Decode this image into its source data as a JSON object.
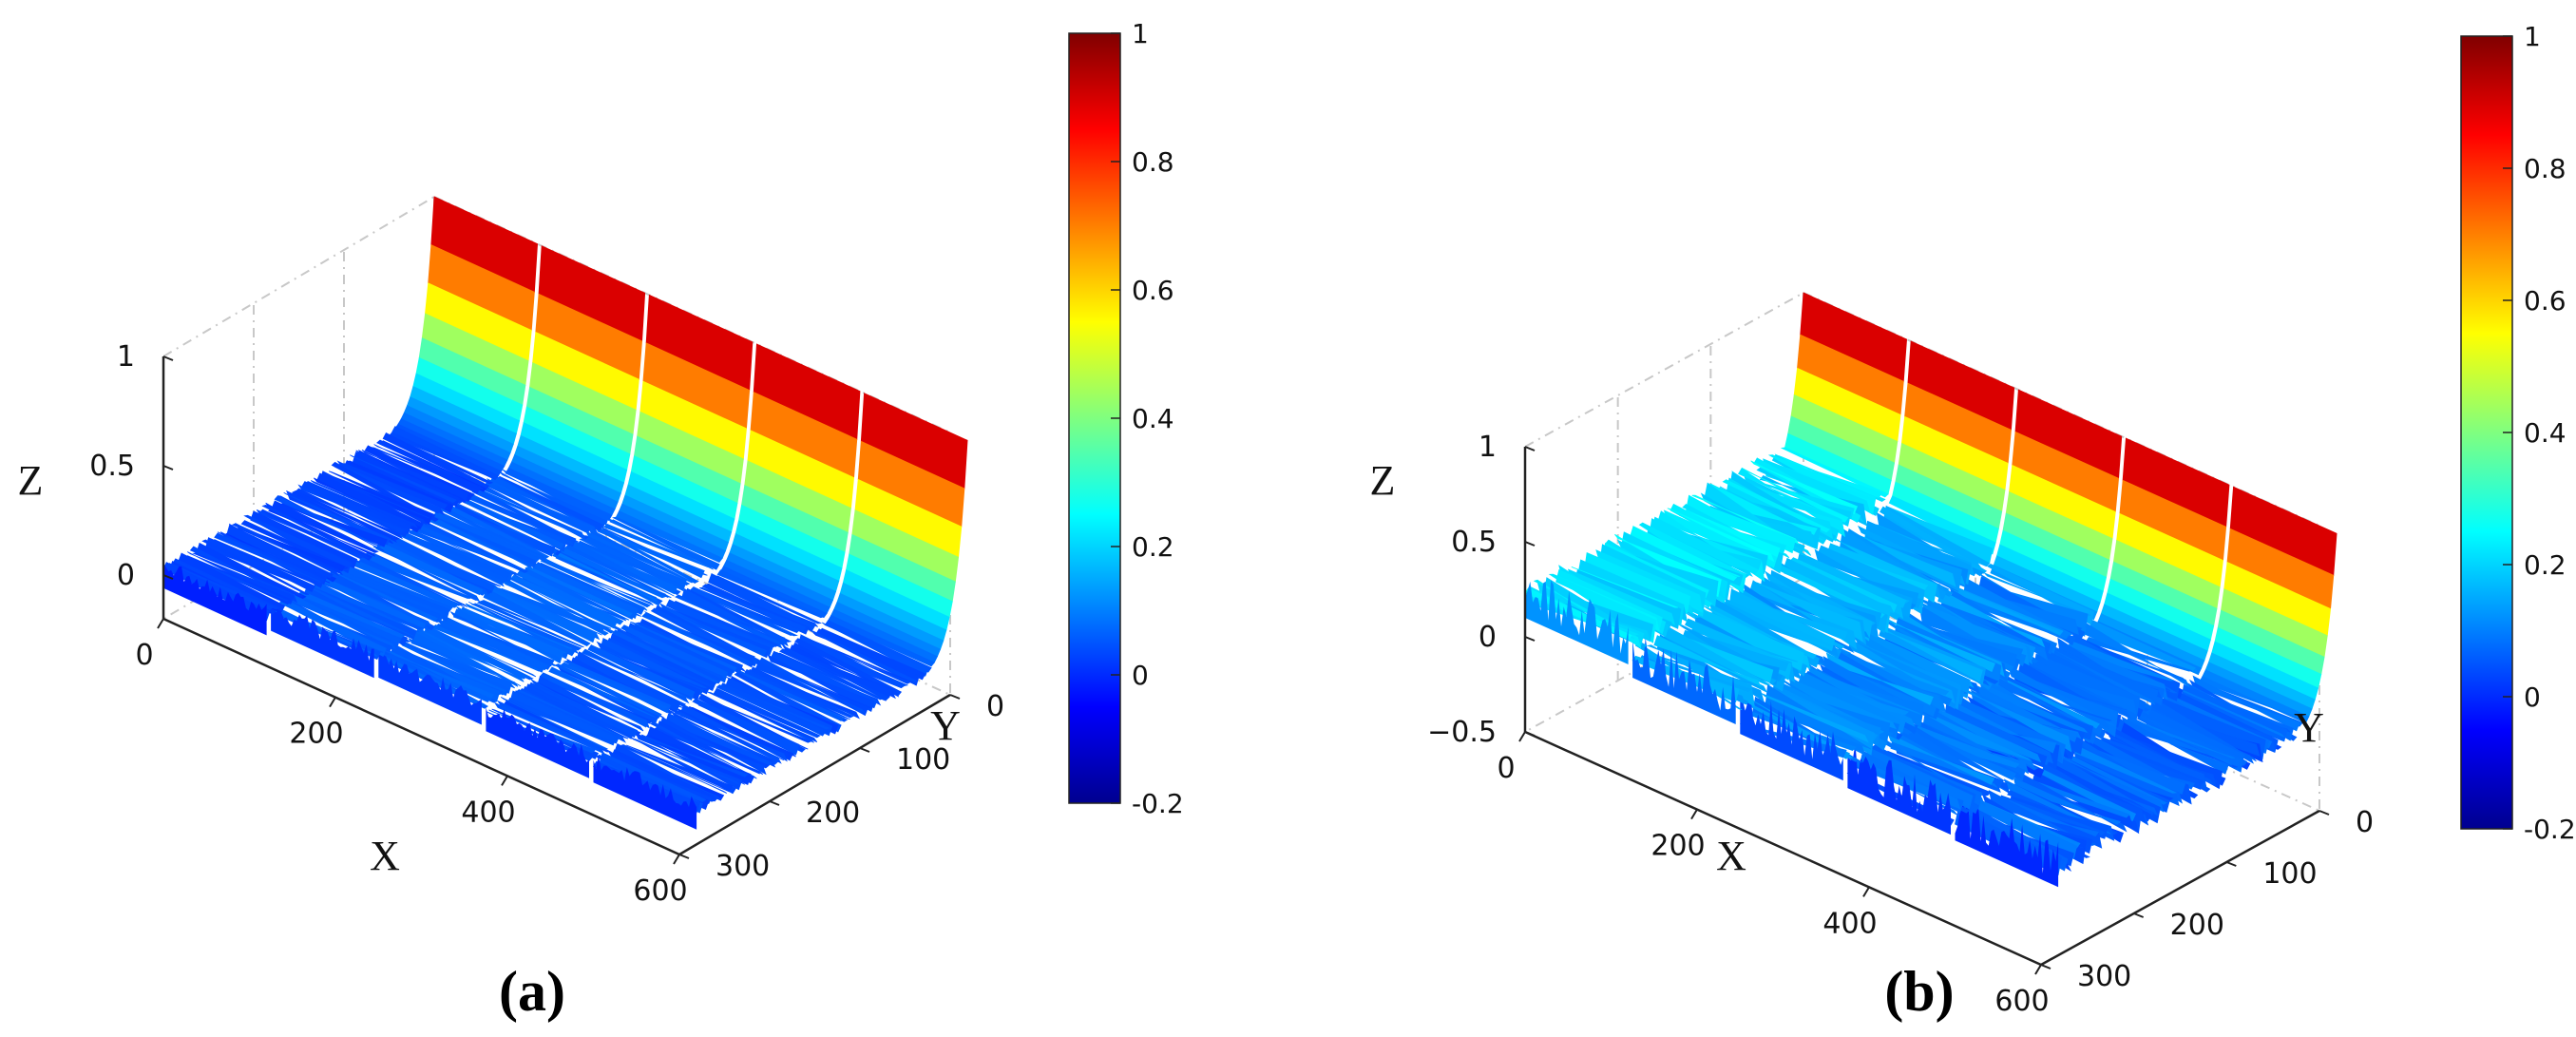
{
  "chart_data": [
    {
      "id": "a",
      "type": "surface",
      "panel_label": "(a)",
      "xlabel": "X",
      "ylabel": "Y",
      "zlabel": "Z",
      "x_ticks": [
        "0",
        "200",
        "400",
        "600"
      ],
      "y_ticks": [
        "0",
        "100",
        "200",
        "300"
      ],
      "z_ticks": [
        "0",
        "0.5",
        "1"
      ],
      "xlim": [
        0,
        600
      ],
      "ylim": [
        0,
        300
      ],
      "zlim": [
        -0.2,
        1
      ],
      "colorbar": {
        "ticks": [
          "1",
          "0.8",
          "0.6",
          "0.4",
          "0.2",
          "0",
          "-0.2"
        ],
        "range": [
          -0.2,
          1
        ],
        "colormap": "jet"
      },
      "ridges": [
        {
          "x": [
            0,
            120
          ],
          "level": 0.02
        },
        {
          "x": [
            125,
            245
          ],
          "level": 0.05
        },
        {
          "x": [
            250,
            370
          ],
          "level": 0.06
        },
        {
          "x": [
            375,
            495
          ],
          "level": 0.04
        },
        {
          "x": [
            500,
            620
          ],
          "level": 0.03
        }
      ],
      "peak_at_y0": 1,
      "noise": 0.05
    },
    {
      "id": "b",
      "type": "surface",
      "panel_label": "(b)",
      "xlabel": "X",
      "ylabel": "Y",
      "zlabel": "Z",
      "x_ticks": [
        "0",
        "200",
        "400",
        "600"
      ],
      "y_ticks": [
        "0",
        "100",
        "200",
        "300"
      ],
      "z_ticks": [
        "−0.5",
        "0",
        "0.5",
        "1"
      ],
      "xlim": [
        0,
        600
      ],
      "ylim": [
        0,
        300
      ],
      "zlim": [
        -0.5,
        1
      ],
      "colorbar": {
        "ticks": [
          "1",
          "0.8",
          "0.6",
          "0.4",
          "0.2",
          "0",
          "-0.2"
        ],
        "range": [
          -0.2,
          1
        ],
        "colormap": "jet"
      },
      "ridges": [
        {
          "x": [
            0,
            120
          ],
          "level": 0.18
        },
        {
          "x": [
            125,
            245
          ],
          "level": 0.12
        },
        {
          "x": [
            250,
            370
          ],
          "level": 0.08
        },
        {
          "x": [
            375,
            495
          ],
          "level": 0.05
        },
        {
          "x": [
            500,
            620
          ],
          "level": 0.03
        }
      ],
      "peak_at_y0": 1,
      "noise": 0.14
    }
  ],
  "colors": {
    "axis": "#222222",
    "grid": "#c8c8c8",
    "background": "#ffffff"
  }
}
